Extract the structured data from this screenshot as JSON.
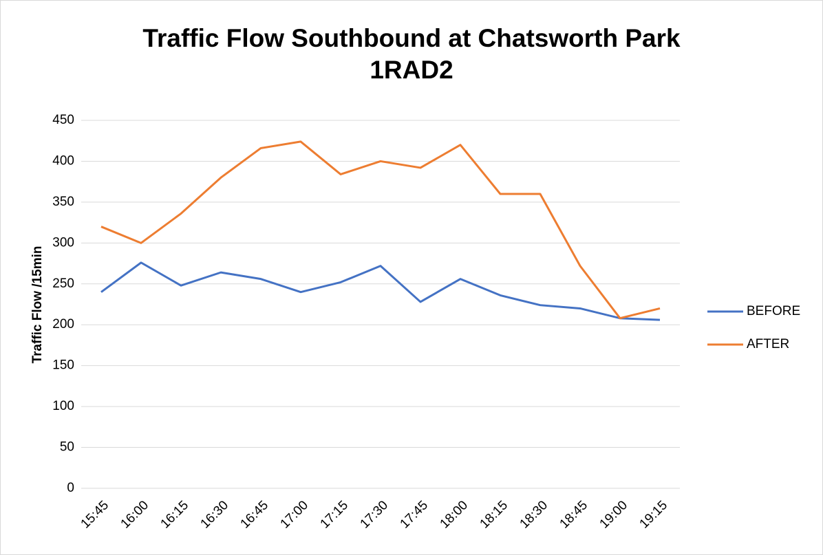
{
  "chart_data": {
    "type": "line",
    "title": [
      "Traffic Flow Southbound at Chatsworth Park",
      "1RAD2"
    ],
    "y_label": "Traffic Flow /15min",
    "categories": [
      "15:45",
      "16:00",
      "16:15",
      "16:30",
      "16:45",
      "17:00",
      "17:15",
      "17:30",
      "17:45",
      "18:00",
      "18:15",
      "18:30",
      "18:45",
      "19:00",
      "19:15"
    ],
    "series": [
      {
        "name": "BEFORE",
        "color": "#4472c4",
        "values": [
          240,
          276,
          248,
          264,
          256,
          240,
          252,
          272,
          228,
          256,
          236,
          224,
          220,
          208,
          206
        ]
      },
      {
        "name": "AFTER",
        "color": "#ed7d31",
        "values": [
          320,
          300,
          336,
          380,
          416,
          424,
          384,
          400,
          392,
          420,
          360,
          360,
          272,
          208,
          220
        ]
      }
    ],
    "ylim": [
      0,
      450
    ],
    "yticks": [
      0,
      50,
      100,
      150,
      200,
      250,
      300,
      350,
      400,
      450
    ],
    "grid": true,
    "legend": "right"
  }
}
